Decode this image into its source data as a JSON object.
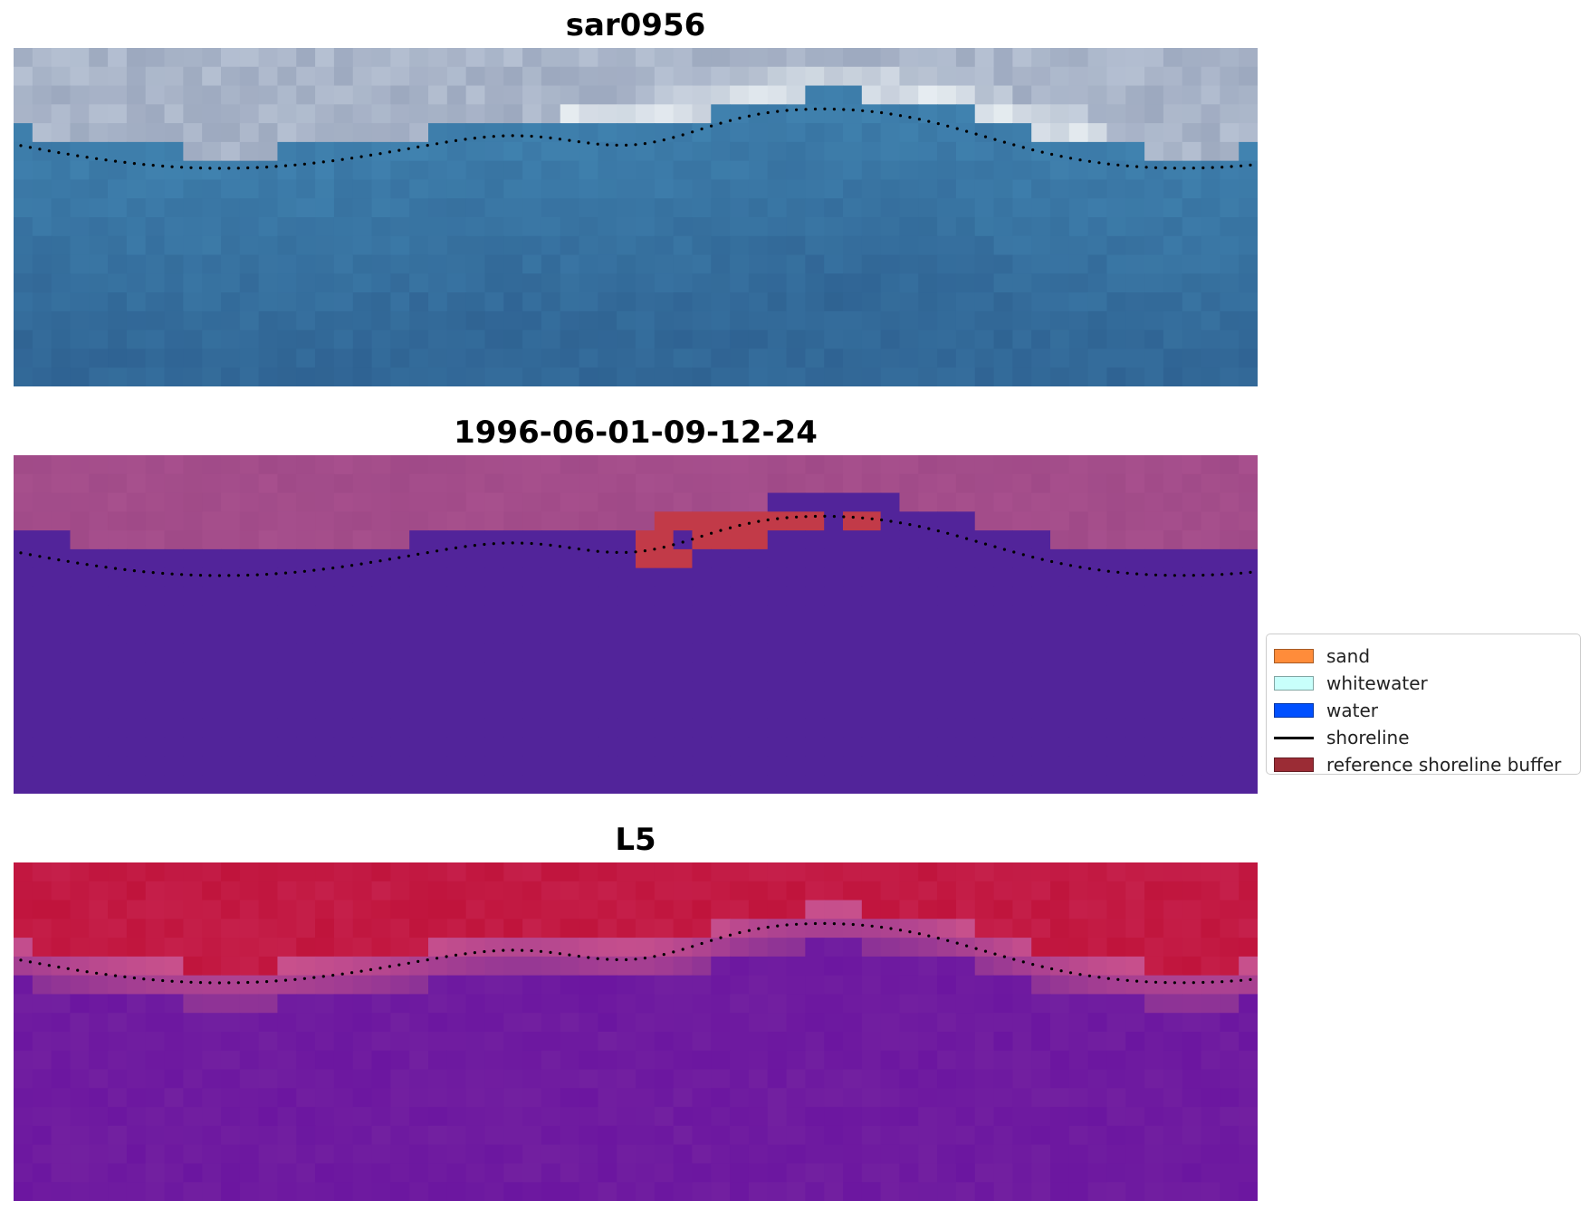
{
  "panels": [
    {
      "title": "sar0956",
      "kind": "rgb"
    },
    {
      "title": "1996-06-01-09-12-24",
      "kind": "classified"
    },
    {
      "title": "L5",
      "kind": "index"
    }
  ],
  "legend": {
    "items": [
      {
        "label": "sand",
        "type": "patch",
        "color": "#ff8c3a"
      },
      {
        "label": "whitewater",
        "type": "patch",
        "color": "#c8fffb"
      },
      {
        "label": "water",
        "type": "patch",
        "color": "#0050ff"
      },
      {
        "label": "shoreline",
        "type": "line",
        "color": "#000000"
      },
      {
        "label": "reference shoreline buffer",
        "type": "patch",
        "color": "#9b2c35"
      }
    ]
  },
  "colors": {
    "rgb_sky": "#8a97b0",
    "rgb_water": "#2d5f8f",
    "classified_land": "#a04a88",
    "classified_water": "#52249a",
    "classified_buffer": "#c23a48",
    "index_high": "#c0143c",
    "index_low": "#6a14a0",
    "shoreline_dots": "#000000"
  }
}
